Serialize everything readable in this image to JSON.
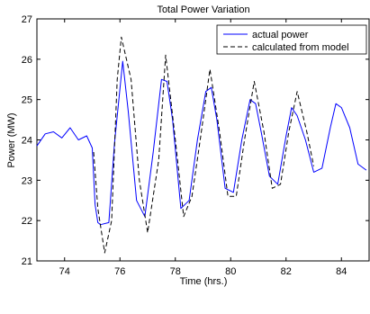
{
  "chart_data": {
    "type": "line",
    "title": "Total Power Variation",
    "xlabel": "Time (hrs.)",
    "ylabel": "Power (MW)",
    "xlim": [
      73,
      85
    ],
    "ylim": [
      21,
      27
    ],
    "xticks": [
      74,
      76,
      78,
      80,
      82,
      84
    ],
    "yticks": [
      21,
      22,
      23,
      24,
      25,
      26,
      27
    ],
    "grid": false,
    "legend_position": "top-right",
    "series": [
      {
        "name": "actual power",
        "color": "#0000ff",
        "style": "solid",
        "x": [
          73.0,
          73.3,
          73.6,
          73.9,
          74.2,
          74.5,
          74.8,
          75.0,
          75.1,
          75.2,
          75.3,
          75.6,
          75.8,
          76.1,
          76.3,
          76.6,
          76.9,
          77.2,
          77.5,
          77.7,
          77.9,
          78.2,
          78.5,
          78.8,
          79.1,
          79.3,
          79.5,
          79.8,
          80.1,
          80.4,
          80.7,
          80.9,
          81.1,
          81.4,
          81.7,
          82.0,
          82.2,
          82.4,
          82.7,
          83.0,
          83.3,
          83.6,
          83.8,
          84.0,
          84.3,
          84.6,
          84.9
        ],
        "y": [
          23.85,
          24.15,
          24.2,
          24.05,
          24.3,
          24.0,
          24.1,
          23.8,
          22.4,
          21.95,
          21.9,
          21.95,
          23.9,
          25.95,
          24.7,
          22.5,
          22.1,
          23.7,
          25.5,
          25.45,
          24.5,
          22.3,
          22.5,
          24.0,
          25.2,
          25.3,
          24.5,
          22.8,
          22.7,
          24.0,
          25.0,
          24.9,
          24.2,
          23.1,
          22.9,
          24.1,
          24.8,
          24.6,
          24.0,
          23.2,
          23.3,
          24.3,
          24.9,
          24.8,
          24.3,
          23.4,
          23.25
        ]
      },
      {
        "name": "calculated from model",
        "color": "#000000",
        "style": "dashed",
        "x": [
          75.05,
          75.2,
          75.45,
          75.7,
          75.9,
          76.05,
          76.4,
          76.7,
          77.0,
          77.4,
          77.65,
          78.0,
          78.3,
          78.6,
          78.9,
          79.25,
          79.6,
          79.9,
          80.2,
          80.5,
          80.85,
          81.2,
          81.5,
          81.8,
          82.1,
          82.4,
          82.75,
          83.0
        ],
        "y": [
          23.7,
          22.3,
          21.2,
          22.0,
          25.5,
          26.55,
          25.5,
          23.0,
          21.7,
          23.5,
          26.1,
          24.0,
          22.1,
          22.6,
          24.0,
          25.75,
          24.2,
          22.6,
          22.6,
          24.0,
          25.45,
          24.2,
          22.8,
          22.9,
          24.2,
          25.2,
          24.2,
          23.35
        ]
      }
    ]
  }
}
